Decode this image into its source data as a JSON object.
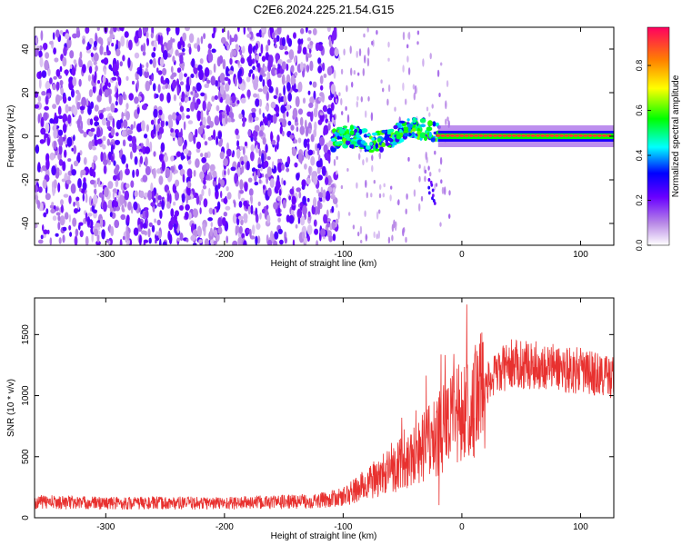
{
  "title": "C2E6.2024.225.21.54.G15",
  "chart_data": [
    {
      "type": "heatmap",
      "id": "spectrogram",
      "xlabel": "Height of straight line (km)",
      "ylabel": "Frequency (Hz)",
      "xlim": [
        -360,
        128
      ],
      "ylim": [
        -50,
        50
      ],
      "x_ticks": [
        -300,
        -200,
        -100,
        0,
        100
      ],
      "y_ticks": [
        -40,
        -20,
        0,
        20,
        40
      ],
      "colorbar": {
        "label": "Normalized spectral amplitude",
        "range": [
          0,
          0.97
        ],
        "ticks": [
          0.0,
          0.2,
          0.4,
          0.6,
          0.8
        ]
      },
      "regions": [
        {
          "x_range": [
            -360,
            -105
          ],
          "frequency_spread": [
            -50,
            50
          ],
          "amplitude": 0.1,
          "pattern": "noise"
        },
        {
          "x_range": [
            -110,
            -20
          ],
          "frequency_center": [
            0,
            5
          ],
          "amplitude": 0.35,
          "pattern": "wandering line"
        },
        {
          "x_range": [
            -20,
            128
          ],
          "frequency_center": 0,
          "amplitude": 0.95,
          "pattern": "steady tone"
        }
      ]
    },
    {
      "type": "line",
      "id": "snr",
      "xlabel": "Height of straight line (km)",
      "ylabel": "SNR (10 * v/v)",
      "xlim": [
        -360,
        128
      ],
      "ylim": [
        0,
        1800
      ],
      "x_ticks": [
        -300,
        -200,
        -100,
        0,
        100
      ],
      "y_ticks": [
        0,
        500,
        1000,
        1500
      ],
      "line_color": "#e8312f",
      "envelope": [
        {
          "x": -360,
          "y": 130
        },
        {
          "x": -300,
          "y": 120
        },
        {
          "x": -200,
          "y": 120
        },
        {
          "x": -150,
          "y": 130
        },
        {
          "x": -120,
          "y": 140
        },
        {
          "x": -100,
          "y": 170
        },
        {
          "x": -90,
          "y": 220
        },
        {
          "x": -80,
          "y": 280
        },
        {
          "x": -70,
          "y": 330
        },
        {
          "x": -60,
          "y": 390
        },
        {
          "x": -50,
          "y": 450
        },
        {
          "x": -40,
          "y": 520
        },
        {
          "x": -30,
          "y": 600
        },
        {
          "x": -20,
          "y": 680
        },
        {
          "x": -10,
          "y": 780
        },
        {
          "x": 0,
          "y": 880
        },
        {
          "x": 10,
          "y": 980
        },
        {
          "x": 20,
          "y": 1080
        },
        {
          "x": 30,
          "y": 1180
        },
        {
          "x": 40,
          "y": 1260
        },
        {
          "x": 60,
          "y": 1250
        },
        {
          "x": 80,
          "y": 1230
        },
        {
          "x": 100,
          "y": 1200
        },
        {
          "x": 128,
          "y": 1150
        }
      ]
    }
  ]
}
